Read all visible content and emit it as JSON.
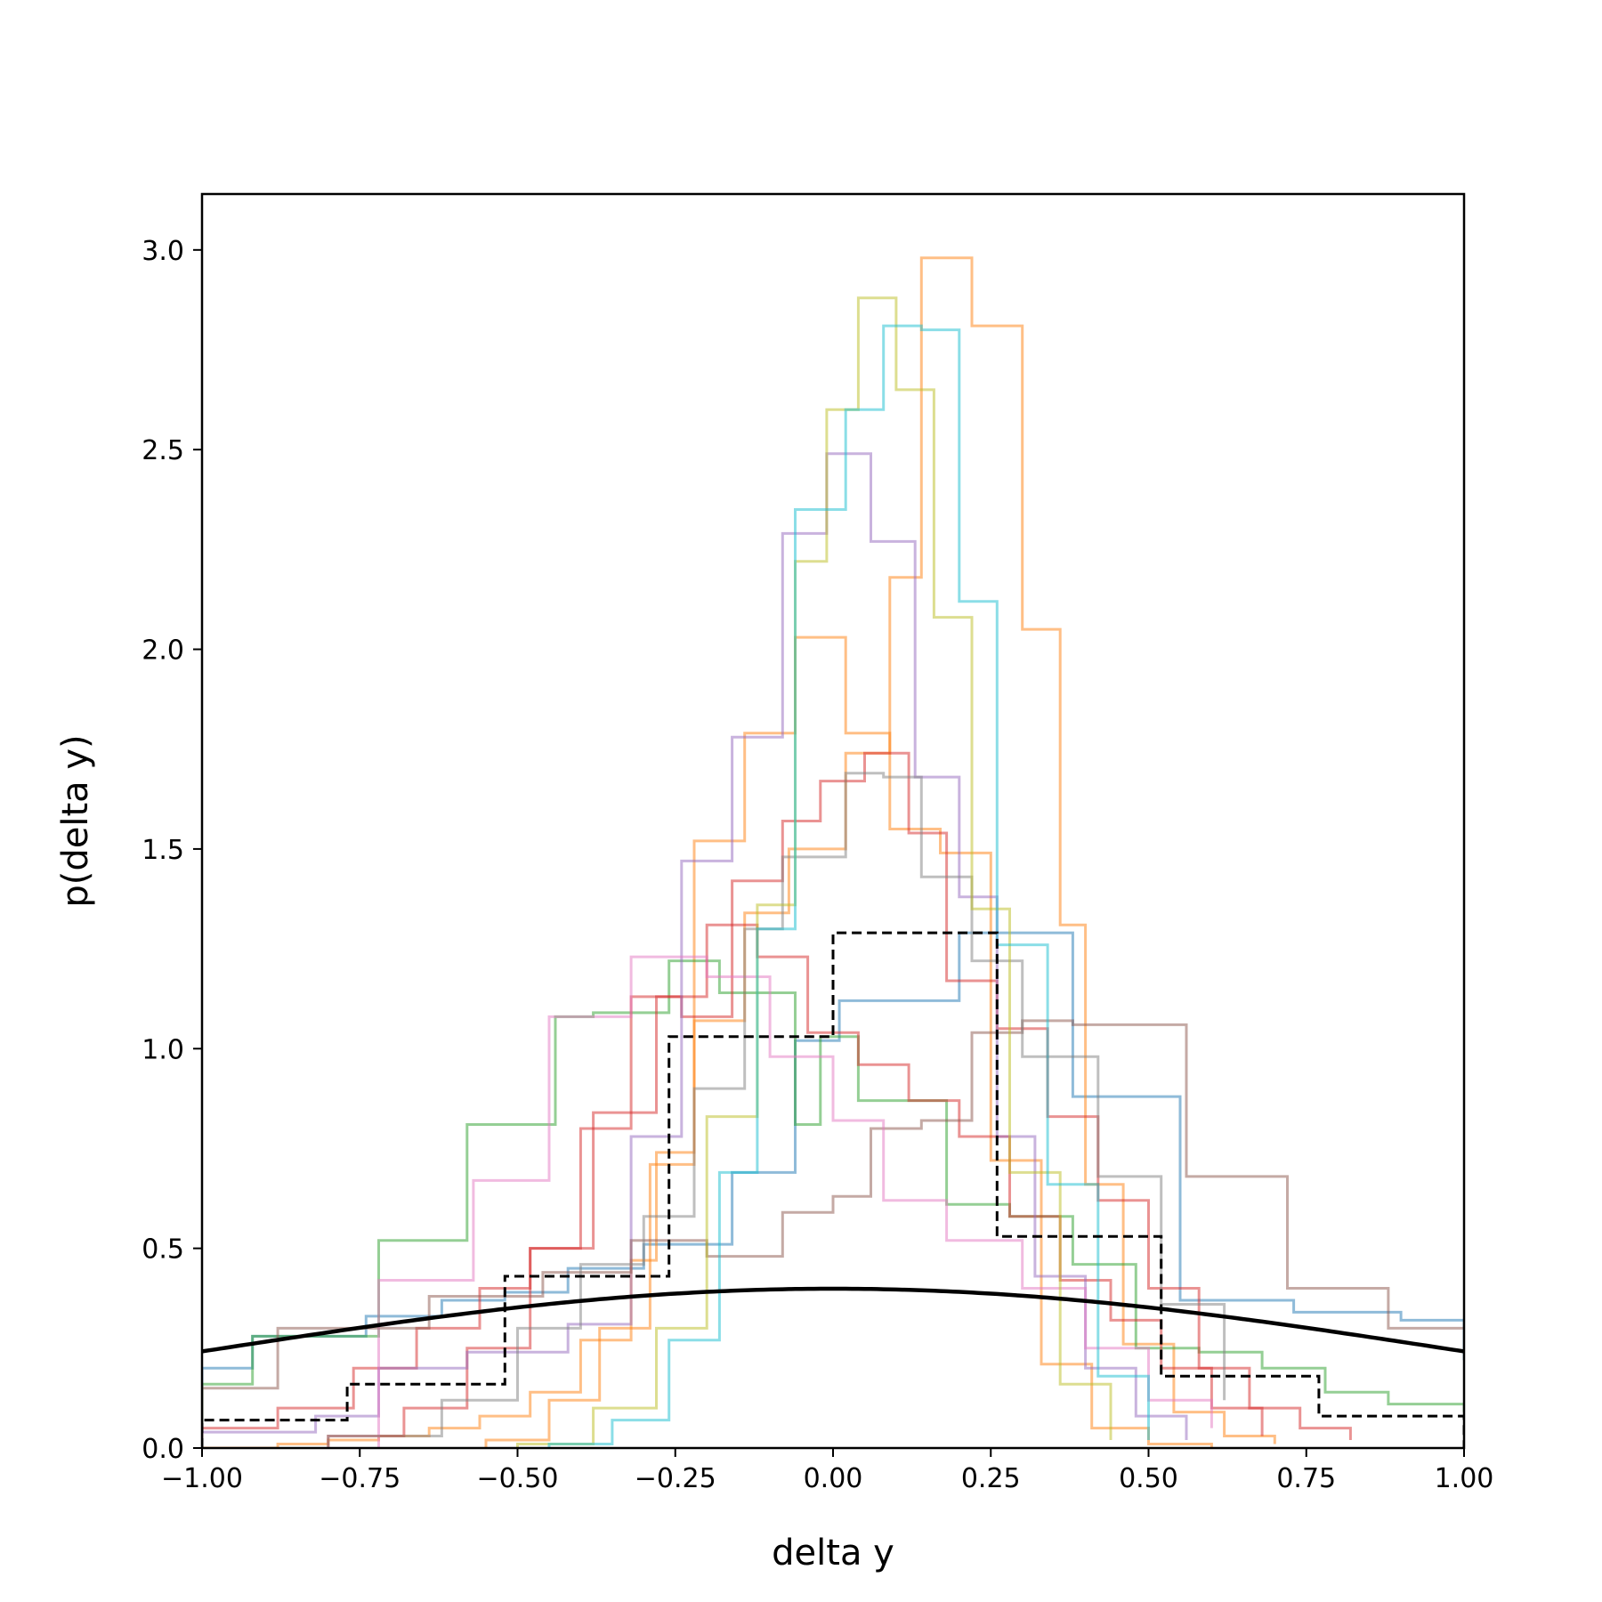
{
  "chart_data": {
    "type": "histogram",
    "xlabel": "delta y",
    "ylabel": "p(delta y)",
    "xlim": [
      -1.0,
      1.0
    ],
    "ylim": [
      0.0,
      3.14
    ],
    "xticks": [
      -1.0,
      -0.75,
      -0.5,
      -0.25,
      0.0,
      0.25,
      0.5,
      0.75,
      1.0
    ],
    "xtick_labels": [
      "−1.00",
      "−0.75",
      "−0.50",
      "−0.25",
      "0.00",
      "0.25",
      "0.50",
      "0.75",
      "1.00"
    ],
    "yticks": [
      0.0,
      0.5,
      1.0,
      1.5,
      2.0,
      2.5,
      3.0
    ],
    "ytick_labels": [
      "0.0",
      "0.5",
      "1.0",
      "1.5",
      "2.0",
      "2.5",
      "3.0"
    ],
    "grid": false,
    "legend": false,
    "series": [
      {
        "color": "#1f77b4",
        "style": "step",
        "edges": [
          -1.0,
          -0.92,
          -0.84,
          -0.74,
          -0.62,
          -0.52,
          -0.42,
          -0.3,
          -0.16,
          -0.06,
          0.01,
          0.2,
          0.38,
          0.55,
          0.73,
          0.9,
          1.0
        ],
        "values": [
          0.2,
          0.28,
          0.28,
          0.33,
          0.37,
          0.39,
          0.45,
          0.51,
          0.69,
          1.02,
          1.12,
          1.29,
          0.88,
          0.37,
          0.34,
          0.32,
          0.22
        ]
      },
      {
        "color": "#ff7f0e",
        "style": "step",
        "edges": [
          -1.0,
          -0.88,
          -0.8,
          -0.72,
          -0.64,
          -0.56,
          -0.48,
          -0.4,
          -0.32,
          -0.28,
          -0.22,
          -0.14,
          -0.07,
          0.02,
          0.09,
          0.14,
          0.22,
          0.3,
          0.36,
          0.4,
          0.46,
          0.54,
          0.62,
          0.7
        ],
        "values": [
          0.0,
          0.01,
          0.02,
          0.03,
          0.05,
          0.08,
          0.14,
          0.27,
          0.47,
          0.74,
          1.07,
          1.34,
          1.5,
          1.74,
          2.18,
          2.98,
          2.81,
          2.05,
          1.31,
          0.66,
          0.26,
          0.09,
          0.03,
          0.01
        ]
      },
      {
        "color": "#ff7f0e",
        "style": "step",
        "edges": [
          -0.55,
          -0.45,
          -0.37,
          -0.29,
          -0.22,
          -0.14,
          -0.06,
          0.02,
          0.09,
          0.17,
          0.25,
          0.33,
          0.41,
          0.5,
          0.6
        ],
        "values": [
          0.02,
          0.12,
          0.3,
          0.71,
          1.52,
          1.79,
          2.03,
          1.79,
          1.55,
          1.49,
          0.72,
          0.21,
          0.05,
          0.01,
          0.0
        ]
      },
      {
        "color": "#2ca02c",
        "style": "step",
        "edges": [
          -1.0,
          -0.92,
          -0.82,
          -0.72,
          -0.58,
          -0.44,
          -0.38,
          -0.26,
          -0.18,
          -0.06,
          -0.02,
          0.04,
          0.1,
          0.18,
          0.28,
          0.38,
          0.48,
          0.58,
          0.68,
          0.78,
          0.88,
          1.0
        ],
        "values": [
          0.16,
          0.28,
          0.28,
          0.52,
          0.81,
          1.08,
          1.09,
          1.22,
          1.14,
          0.81,
          1.03,
          0.87,
          0.87,
          0.61,
          0.58,
          0.46,
          0.25,
          0.24,
          0.2,
          0.14,
          0.11,
          0.09
        ]
      },
      {
        "color": "#d62728",
        "style": "step",
        "edges": [
          -1.0,
          -0.88,
          -0.76,
          -0.66,
          -0.56,
          -0.48,
          -0.4,
          -0.32,
          -0.24,
          -0.16,
          -0.08,
          -0.02,
          0.05,
          0.12,
          0.18,
          0.26,
          0.34,
          0.42,
          0.5,
          0.58,
          0.66,
          0.74,
          0.82
        ],
        "values": [
          0.05,
          0.1,
          0.2,
          0.3,
          0.4,
          0.5,
          0.8,
          1.13,
          1.08,
          1.42,
          1.57,
          1.67,
          1.74,
          1.54,
          1.17,
          1.05,
          0.83,
          0.62,
          0.4,
          0.2,
          0.1,
          0.05,
          0.02
        ]
      },
      {
        "color": "#d62728",
        "style": "step",
        "edges": [
          -0.8,
          -0.68,
          -0.58,
          -0.48,
          -0.38,
          -0.28,
          -0.2,
          -0.12,
          -0.04,
          0.04,
          0.12,
          0.2,
          0.28,
          0.36,
          0.44,
          0.52,
          0.6,
          0.68
        ],
        "values": [
          0.03,
          0.1,
          0.25,
          0.5,
          0.84,
          1.13,
          1.31,
          1.23,
          1.04,
          0.96,
          0.87,
          0.78,
          0.58,
          0.42,
          0.32,
          0.2,
          0.1,
          0.03
        ]
      },
      {
        "color": "#9467bd",
        "style": "step",
        "edges": [
          -1.0,
          -0.82,
          -0.72,
          -0.58,
          -0.42,
          -0.32,
          -0.24,
          -0.16,
          -0.08,
          -0.01,
          0.06,
          0.13,
          0.2,
          0.26,
          0.32,
          0.4,
          0.48,
          0.56
        ],
        "values": [
          0.04,
          0.08,
          0.2,
          0.24,
          0.31,
          0.78,
          1.47,
          1.78,
          2.29,
          2.49,
          2.27,
          1.68,
          1.38,
          0.78,
          0.43,
          0.2,
          0.08,
          0.02
        ]
      },
      {
        "color": "#8c564b",
        "style": "step",
        "edges": [
          -1.0,
          -0.88,
          -0.64,
          -0.46,
          -0.32,
          -0.2,
          -0.08,
          0.0,
          0.06,
          0.14,
          0.22,
          0.3,
          0.38,
          0.56,
          0.72,
          0.88,
          1.0
        ],
        "values": [
          0.15,
          0.3,
          0.38,
          0.44,
          0.52,
          0.48,
          0.59,
          0.63,
          0.8,
          0.82,
          1.04,
          1.07,
          1.06,
          0.68,
          0.4,
          0.3,
          0.3
        ]
      },
      {
        "color": "#e377c2",
        "style": "step",
        "edges": [
          -0.72,
          -0.57,
          -0.45,
          -0.32,
          -0.2,
          -0.1,
          0.0,
          0.08,
          0.18,
          0.3,
          0.4,
          0.5,
          0.6
        ],
        "values": [
          0.42,
          0.67,
          1.08,
          1.23,
          1.18,
          0.98,
          0.82,
          0.62,
          0.52,
          0.4,
          0.25,
          0.12,
          0.05
        ]
      },
      {
        "color": "#7f7f7f",
        "style": "step",
        "edges": [
          -0.8,
          -0.62,
          -0.5,
          -0.4,
          -0.3,
          -0.22,
          -0.14,
          -0.08,
          0.02,
          0.08,
          0.14,
          0.22,
          0.3,
          0.42,
          0.52,
          0.62
        ],
        "values": [
          0.03,
          0.12,
          0.3,
          0.46,
          0.58,
          0.9,
          1.3,
          1.48,
          1.69,
          1.68,
          1.43,
          1.22,
          0.98,
          0.68,
          0.36,
          0.12
        ]
      },
      {
        "color": "#bcbd22",
        "style": "step",
        "edges": [
          -0.5,
          -0.38,
          -0.28,
          -0.2,
          -0.12,
          -0.06,
          -0.01,
          0.04,
          0.1,
          0.16,
          0.22,
          0.28,
          0.36,
          0.44
        ],
        "values": [
          0.01,
          0.1,
          0.3,
          0.83,
          1.36,
          2.22,
          2.6,
          2.88,
          2.65,
          2.08,
          1.35,
          0.69,
          0.16,
          0.02
        ]
      },
      {
        "color": "#17becf",
        "style": "step",
        "edges": [
          -0.45,
          -0.35,
          -0.26,
          -0.18,
          -0.12,
          -0.06,
          0.02,
          0.08,
          0.14,
          0.2,
          0.26,
          0.34,
          0.42,
          0.5
        ],
        "values": [
          0.01,
          0.07,
          0.27,
          0.69,
          1.3,
          2.35,
          2.6,
          2.81,
          2.8,
          2.12,
          1.26,
          0.66,
          0.18,
          0.02
        ]
      },
      {
        "color": "#000000",
        "style": "dashed-step",
        "edges": [
          -1.0,
          -0.77,
          -0.52,
          -0.26,
          0.0,
          0.26,
          0.52,
          0.77,
          1.0
        ],
        "values": [
          0.07,
          0.16,
          0.43,
          1.03,
          1.29,
          0.53,
          0.18,
          0.08
        ]
      },
      {
        "color": "#000000",
        "style": "curve",
        "function": "normal",
        "mean": 0.0,
        "std": 1.0
      }
    ]
  }
}
